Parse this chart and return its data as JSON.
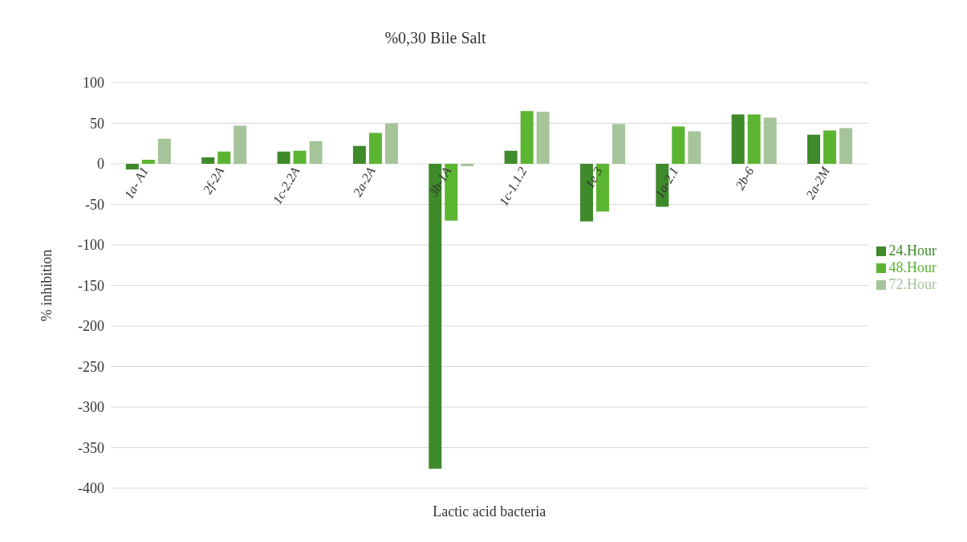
{
  "chart_data": {
    "type": "bar",
    "title": "%0,30 Bile Salt",
    "xlabel": "Lactic acid bacteria",
    "ylabel": "% inhibition",
    "categories": [
      "1a- A1",
      "2f-2A",
      "1c-2.2A",
      "2a-2A",
      "3b-1A",
      "1c-1.1.2",
      "1e 3",
      "1a-2.1",
      "2b-6",
      "2a-2M"
    ],
    "series": [
      {
        "name": "24.Hour",
        "color": "#3f8a2a",
        "values": [
          -7,
          8,
          15,
          22,
          -376,
          16,
          -71,
          -53,
          61,
          36
        ]
      },
      {
        "name": "48.Hour",
        "color": "#5cb531",
        "values": [
          5,
          15,
          16,
          38,
          -70,
          65,
          -59,
          46,
          61,
          41
        ]
      },
      {
        "name": "72.Hour",
        "color": "#a5c49a",
        "values": [
          31,
          47,
          28,
          50,
          -3,
          64,
          49,
          40,
          57,
          44
        ]
      }
    ],
    "ylim": [
      -400,
      100
    ],
    "yticks": [
      -400,
      -350,
      -300,
      -250,
      -200,
      -150,
      -100,
      -50,
      0,
      50,
      100
    ],
    "grid": "y",
    "legend": "right"
  }
}
